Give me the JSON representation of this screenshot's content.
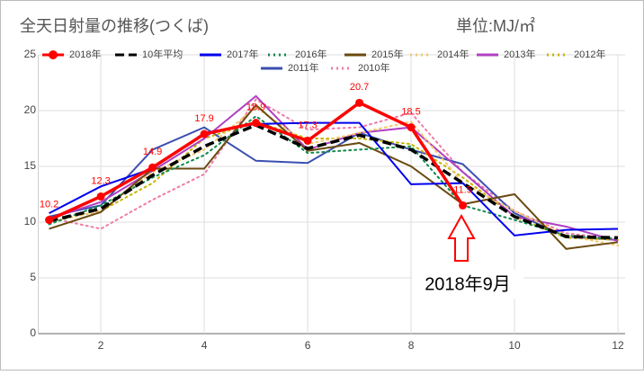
{
  "chart_data": {
    "type": "line",
    "title": "全天日射量の推移(つくば)",
    "unit_label": "単位:MJ/㎡",
    "annotation": "2018年9月",
    "x": [
      1,
      2,
      3,
      4,
      5,
      6,
      7,
      8,
      9,
      10,
      11,
      12
    ],
    "xlim": [
      1,
      12
    ],
    "xticks": [
      2,
      4,
      6,
      8,
      10,
      12
    ],
    "ylim": [
      0,
      25
    ],
    "yticks": [
      0,
      5,
      10,
      15,
      20,
      25
    ],
    "grid": true,
    "series": [
      {
        "name": "2018年",
        "color": "#ff0000",
        "dash": "solid",
        "markers": true,
        "data_labels": true,
        "values": [
          10.2,
          12.3,
          14.9,
          17.9,
          18.9,
          17.3,
          20.7,
          18.5,
          11.5,
          null,
          null,
          null
        ]
      },
      {
        "name": "10年平均",
        "color": "#000000",
        "dash": "dashed",
        "values": [
          10.1,
          11.2,
          14.2,
          16.8,
          18.7,
          16.6,
          17.8,
          16.5,
          13.5,
          10.5,
          8.7,
          8.6
        ]
      },
      {
        "name": "2017年",
        "color": "#0000ee",
        "dash": "solid",
        "values": [
          10.8,
          13.2,
          14.8,
          18.0,
          18.8,
          18.9,
          18.9,
          13.4,
          13.5,
          8.8,
          9.3,
          9.4
        ]
      },
      {
        "name": "2016年",
        "color": "#0f8a4a",
        "dash": "dotted",
        "values": [
          9.8,
          11.5,
          14.0,
          16.0,
          19.5,
          16.2,
          16.5,
          16.8,
          11.5,
          10.2,
          8.8,
          8.5
        ]
      },
      {
        "name": "2015年",
        "color": "#6b4a10",
        "dash": "solid",
        "values": [
          9.4,
          10.9,
          14.8,
          14.8,
          20.5,
          16.4,
          17.1,
          15.0,
          11.6,
          12.5,
          7.6,
          8.2
        ]
      },
      {
        "name": "2014年",
        "color": "#f2c86a",
        "dash": "dotted",
        "values": [
          10.0,
          11.0,
          14.5,
          16.5,
          20.3,
          17.0,
          18.0,
          19.0,
          13.5,
          11.0,
          8.8,
          7.9
        ]
      },
      {
        "name": "2013年",
        "color": "#b040c0",
        "dash": "solid",
        "values": [
          10.3,
          11.8,
          14.6,
          17.5,
          21.3,
          16.5,
          18.0,
          18.5,
          14.5,
          10.5,
          9.6,
          8.3
        ]
      },
      {
        "name": "2012年",
        "color": "#c8b400",
        "dash": "dotted",
        "values": [
          10.0,
          11.0,
          13.5,
          17.5,
          19.0,
          17.5,
          17.5,
          17.0,
          14.0,
          10.5,
          8.6,
          8.4
        ]
      },
      {
        "name": "2011年",
        "color": "#3b4fb0",
        "dash": "solid",
        "values": [
          10.5,
          11.5,
          16.5,
          18.5,
          15.5,
          15.3,
          18.0,
          16.5,
          15.2,
          10.8,
          8.7,
          8.4
        ]
      },
      {
        "name": "2010年",
        "color": "#f07aa8",
        "dash": "dotted",
        "values": [
          10.4,
          9.4,
          12.0,
          14.3,
          21.0,
          18.3,
          18.5,
          19.8,
          14.5,
          11.0,
          9.0,
          8.5
        ]
      }
    ]
  }
}
